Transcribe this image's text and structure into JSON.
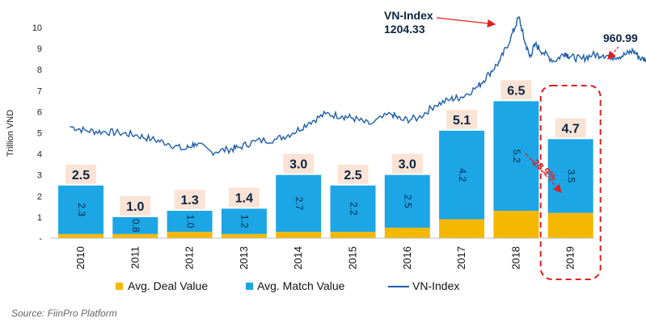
{
  "chart_data": {
    "type": "bar",
    "ylabel": "Trillion VND",
    "yticks": [
      "-",
      "1",
      "2",
      "3",
      "4",
      "5",
      "6",
      "7",
      "8",
      "9",
      "10"
    ],
    "ylim": [
      0,
      10
    ],
    "categories": [
      "2010",
      "2011",
      "2012",
      "2013",
      "2014",
      "2015",
      "2016",
      "2017",
      "2018",
      "2019"
    ],
    "series": [
      {
        "name": "Avg. Deal Value",
        "color": "#F5B800",
        "values": [
          0.2,
          0.2,
          0.3,
          0.2,
          0.3,
          0.3,
          0.5,
          0.9,
          1.3,
          1.2
        ]
      },
      {
        "name": "Avg. Match Value",
        "color": "#1CA6E6",
        "values": [
          2.3,
          0.8,
          1.0,
          1.2,
          2.7,
          2.2,
          2.5,
          4.2,
          5.2,
          3.5
        ],
        "labels": [
          "2.3",
          "0.8",
          "1.0",
          "1.2",
          "2.7",
          "2.2",
          "2.5",
          "4.2",
          "5.2",
          "3.5"
        ]
      }
    ],
    "totals": [
      "2.5",
      "1.0",
      "1.3",
      "1.4",
      "3.0",
      "2.5",
      "3.0",
      "5.1",
      "6.5",
      "4.7"
    ],
    "line_series": {
      "name": "VN-Index",
      "color": "#1F5FA8",
      "x": [
        2009.8,
        2010.1,
        2010.4,
        2010.7,
        2011.0,
        2011.3,
        2011.6,
        2011.9,
        2012.1,
        2012.4,
        2012.7,
        2012.9,
        2013.2,
        2013.6,
        2013.9,
        2014.2,
        2014.5,
        2014.8,
        2015.0,
        2015.3,
        2015.7,
        2015.9,
        2016.2,
        2016.5,
        2016.8,
        2017.0,
        2017.3,
        2017.5,
        2017.7,
        2017.9,
        2018.05,
        2018.15,
        2018.25,
        2018.35,
        2018.5,
        2018.7,
        2018.9,
        2019.0,
        2019.2,
        2019.4,
        2019.6,
        2019.8,
        2020.0,
        2020.15,
        2020.3,
        2020.45
      ],
      "y": [
        5.3,
        5.1,
        5.05,
        5.0,
        4.9,
        4.7,
        4.5,
        4.2,
        4.5,
        4.1,
        4.2,
        4.3,
        4.6,
        4.7,
        5.0,
        5.5,
        5.9,
        5.8,
        5.7,
        5.4,
        5.9,
        5.6,
        5.7,
        6.3,
        6.6,
        6.7,
        7.2,
        7.8,
        8.4,
        9.5,
        10.5,
        9.4,
        8.6,
        9.2,
        8.8,
        8.4,
        8.8,
        8.6,
        8.5,
        8.7,
        8.7,
        8.6,
        8.7,
        8.9,
        8.5,
        8.5
      ]
    },
    "annotations": {
      "peak_label": "VN-Index",
      "peak_value": "1204.33",
      "last_value": "960.99",
      "change": "-28.9%"
    },
    "legend": [
      "Avg. Deal Value",
      "Avg. Match Value",
      "VN-Index"
    ],
    "source": "Source: FiinPro Platform"
  }
}
